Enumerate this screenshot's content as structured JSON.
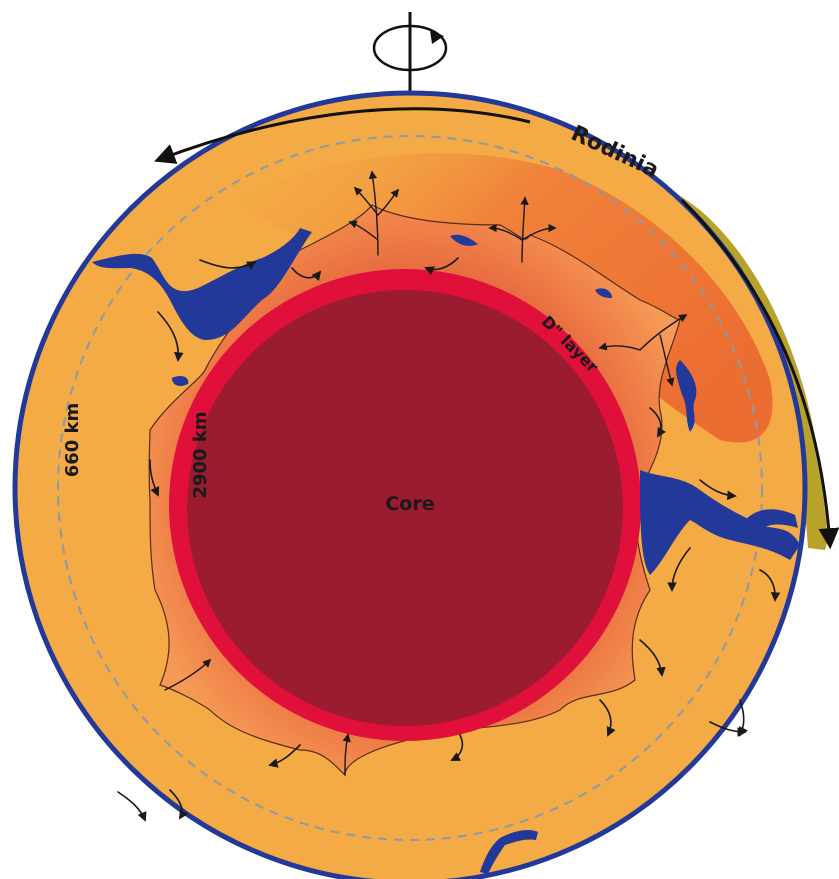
{
  "labels": {
    "supercontinent": "Rodinia",
    "transition_zone": "660 km",
    "core_mantle_boundary": "2900 km",
    "dpp_layer": "D\" layer",
    "core": "Core"
  },
  "icons": {
    "rotation_axis": "rotation-axis-icon"
  },
  "colors": {
    "mantle": "#f4aa45",
    "upper_mantle_hot": "#ee6b30",
    "lower_mantle_edge": "#f08a50",
    "core": "#9b1b30",
    "dpp_layer": "#e0103a",
    "slab": "#22399a",
    "continent": "#b8a22a",
    "boundary_dashed": "#8a9aa8"
  }
}
